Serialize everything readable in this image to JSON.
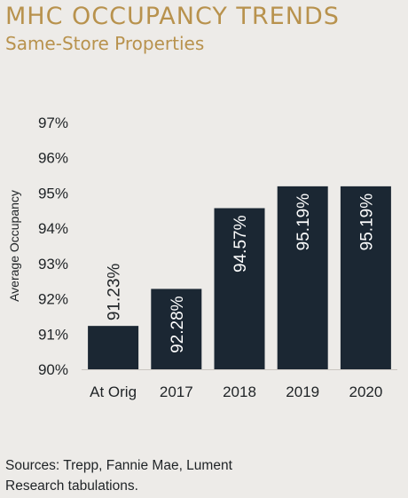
{
  "chart_data": {
    "type": "bar",
    "title": "MHC OCCUPANCY TRENDS",
    "subtitle": "Same-Store Properties",
    "categories": [
      "At Orig",
      "2017",
      "2018",
      "2019",
      "2020"
    ],
    "values": [
      91.23,
      92.28,
      94.57,
      95.19,
      95.19
    ],
    "data_labels": [
      "91.23%",
      "92.28%",
      "94.57%",
      "95.19%",
      "95.19%"
    ],
    "xlabel": "",
    "ylabel": "Average Occupancy",
    "ylim": [
      90,
      97
    ],
    "yticks": [
      90,
      91,
      92,
      93,
      94,
      95,
      96,
      97
    ],
    "ytick_labels": [
      "90%",
      "91%",
      "92%",
      "93%",
      "94%",
      "95%",
      "96%",
      "97%"
    ],
    "grid": false,
    "legend": "none",
    "bar_color": "#1b2733"
  },
  "source_text": "Sources: Trepp, Fannie Mae, Lument Research tabulations.",
  "colors": {
    "accent": "#b8924d",
    "background": "#edebe8",
    "text": "#1f2326"
  }
}
